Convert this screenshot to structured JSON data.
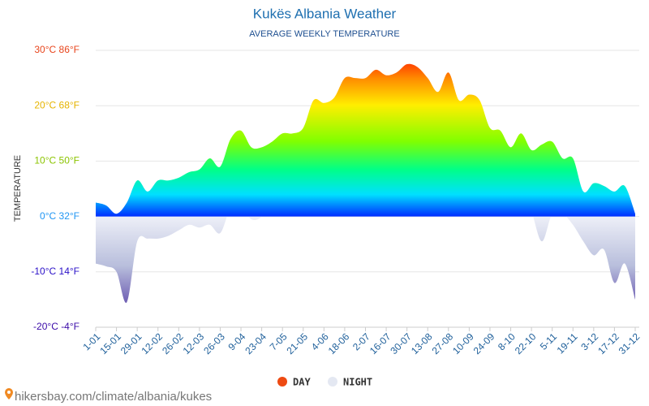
{
  "chart_data": {
    "type": "area",
    "title": "Kukës Albania Weather",
    "subtitle": "AVERAGE WEEKLY TEMPERATURE",
    "y_label": "TEMPERATURE",
    "source": "hikersbay.com/climate/albania/kukes",
    "categories": [
      "1-01",
      null,
      "15-01",
      null,
      "29-01",
      null,
      "12-02",
      null,
      "26-02",
      null,
      "12-03",
      null,
      "26-03",
      null,
      "9-04",
      null,
      "23-04",
      null,
      "7-05",
      null,
      "21-05",
      null,
      "4-06",
      null,
      "18-06",
      null,
      "2-07",
      null,
      "16-07",
      null,
      "30-07",
      null,
      "13-08",
      null,
      "27-08",
      null,
      "10-09",
      null,
      "24-09",
      null,
      "8-10",
      null,
      "22-10",
      null,
      "5-11",
      null,
      "19-11",
      null,
      "3-12",
      null,
      "17-12",
      null,
      "31-12"
    ],
    "series": [
      {
        "name": "DAY",
        "color": "#ee4a12",
        "values": [
          2.5,
          2,
          0.5,
          2.5,
          6.5,
          4.5,
          6.5,
          6.5,
          7,
          8,
          8.5,
          10.5,
          9,
          14,
          15.5,
          12.5,
          12.5,
          13.5,
          15,
          15,
          16,
          21,
          20.5,
          21.5,
          25,
          25,
          25,
          26.5,
          25.5,
          26,
          27.5,
          27,
          25,
          22.5,
          26,
          21,
          22,
          21,
          16,
          15.5,
          12.5,
          15,
          12,
          13,
          13.5,
          10.5,
          10.5,
          4.5,
          6,
          5.5,
          4.5,
          5.5,
          0.5
        ]
      },
      {
        "name": "NIGHT",
        "color": "#e4e8f2",
        "values": [
          -8.5,
          -9,
          -10,
          -15.5,
          -4.5,
          -4,
          -4,
          -3.5,
          -2.5,
          -1.5,
          -2,
          -1.5,
          -3,
          1.5,
          2,
          -0.5,
          0,
          3,
          4.5,
          5,
          6.5,
          6.5,
          7,
          9,
          11.5,
          12.5,
          13,
          11,
          12.5,
          12,
          13,
          13,
          10.5,
          10,
          10,
          9.5,
          8.5,
          8,
          5,
          5,
          4.5,
          6,
          1,
          -4.5,
          0.5,
          0.5,
          -1.5,
          -4.5,
          -7,
          -6,
          -12,
          -8.5,
          -15
        ]
      }
    ],
    "ylim": [
      -20,
      30
    ],
    "yticks": [
      {
        "value": -20,
        "label": "-20°C -4°F"
      },
      {
        "value": -10,
        "label": "-10°C 14°F"
      },
      {
        "value": 0,
        "label": "0°C 32°F"
      },
      {
        "value": 10,
        "label": "10°C 50°F"
      },
      {
        "value": 20,
        "label": "20°C 68°F"
      },
      {
        "value": 30,
        "label": "30°C 86°F"
      }
    ],
    "ytick_colors": [
      "#3a0aa8",
      "#2a10c8",
      "#2196f3",
      "#8bc400",
      "#e6b400",
      "#e8451c"
    ],
    "grid": true
  }
}
